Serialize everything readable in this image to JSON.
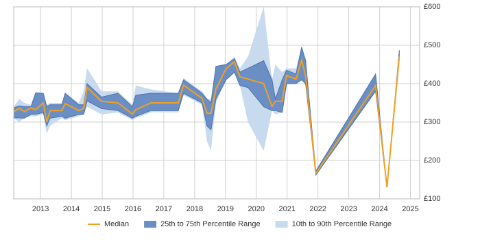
{
  "chart_data": {
    "type": "line",
    "x": [
      2012.13,
      2012.31,
      2012.47,
      2012.69,
      2012.84,
      2013.09,
      2013.2,
      2013.31,
      2013.69,
      2013.8,
      2014.24,
      2014.4,
      2014.51,
      2014.98,
      2015.51,
      2015.98,
      2016.09,
      2016.58,
      2017.47,
      2017.64,
      2018.24,
      2018.4,
      2018.53,
      2018.69,
      2019.02,
      2019.29,
      2019.47,
      2019.73,
      2020.24,
      2020.51,
      2020.62,
      2020.84,
      2020.98,
      2021.29,
      2021.47,
      2021.6,
      2021.93,
      2023.87,
      2024.24,
      2024.64
    ],
    "series": [
      {
        "name": "Median",
        "color": "#f0a020",
        "values": [
          327,
          336,
          327,
          337,
          332,
          350,
          300,
          330,
          330,
          348,
          330,
          335,
          390,
          354,
          350,
          321,
          332,
          350,
          350,
          396,
          362,
          323,
          323,
          386,
          439,
          457,
          418,
          412,
          400,
          341,
          354,
          354,
          421,
          412,
          461,
          421,
          166,
          395,
          130,
          471
        ]
      },
      {
        "name": "25th to 75th Percentile Range",
        "color": "#6b8fc4",
        "low": [
          311,
          311,
          310,
          320,
          320,
          325,
          290,
          310,
          315,
          310,
          320,
          320,
          355,
          335,
          330,
          310,
          315,
          330,
          330,
          375,
          350,
          290,
          280,
          360,
          410,
          430,
          395,
          390,
          340,
          330,
          330,
          325,
          400,
          400,
          410,
          400,
          162,
          380,
          130,
          465
        ],
        "high": [
          337,
          342,
          340,
          340,
          375,
          375,
          340,
          345,
          345,
          375,
          345,
          345,
          400,
          365,
          375,
          340,
          370,
          375,
          375,
          410,
          375,
          360,
          350,
          445,
          450,
          465,
          430,
          440,
          460,
          410,
          360,
          410,
          435,
          425,
          495,
          460,
          172,
          425,
          130,
          487
        ]
      },
      {
        "name": "10th to 90th Percentile Range",
        "color": "#c8daee",
        "low": [
          310,
          300,
          310,
          315,
          315,
          320,
          270,
          290,
          310,
          305,
          315,
          320,
          340,
          320,
          325,
          305,
          310,
          325,
          325,
          370,
          345,
          250,
          225,
          350,
          410,
          430,
          395,
          300,
          225,
          330,
          320,
          325,
          400,
          400,
          410,
          395,
          160,
          380,
          130,
          465
        ],
        "high": [
          340,
          360,
          350,
          345,
          380,
          375,
          345,
          350,
          350,
          375,
          350,
          380,
          440,
          380,
          380,
          345,
          395,
          385,
          375,
          415,
          380,
          360,
          360,
          445,
          450,
          470,
          440,
          470,
          600,
          410,
          450,
          430,
          440,
          440,
          495,
          460,
          175,
          425,
          130,
          487
        ]
      }
    ],
    "xlim": [
      2012.13,
      2025.3
    ],
    "xticks": [
      2013,
      2014,
      2015,
      2016,
      2017,
      2018,
      2019,
      2020,
      2021,
      2022,
      2023,
      2024,
      2025
    ],
    "ylim": [
      100,
      600
    ],
    "yticks": [
      {
        "value": 100,
        "label": "£100"
      },
      {
        "value": 200,
        "label": "£200"
      },
      {
        "value": 300,
        "label": "£300"
      },
      {
        "value": 400,
        "label": "£400"
      },
      {
        "value": 500,
        "label": "£500"
      },
      {
        "value": 600,
        "label": "£600"
      }
    ],
    "grid": true,
    "legend": "bottom"
  }
}
